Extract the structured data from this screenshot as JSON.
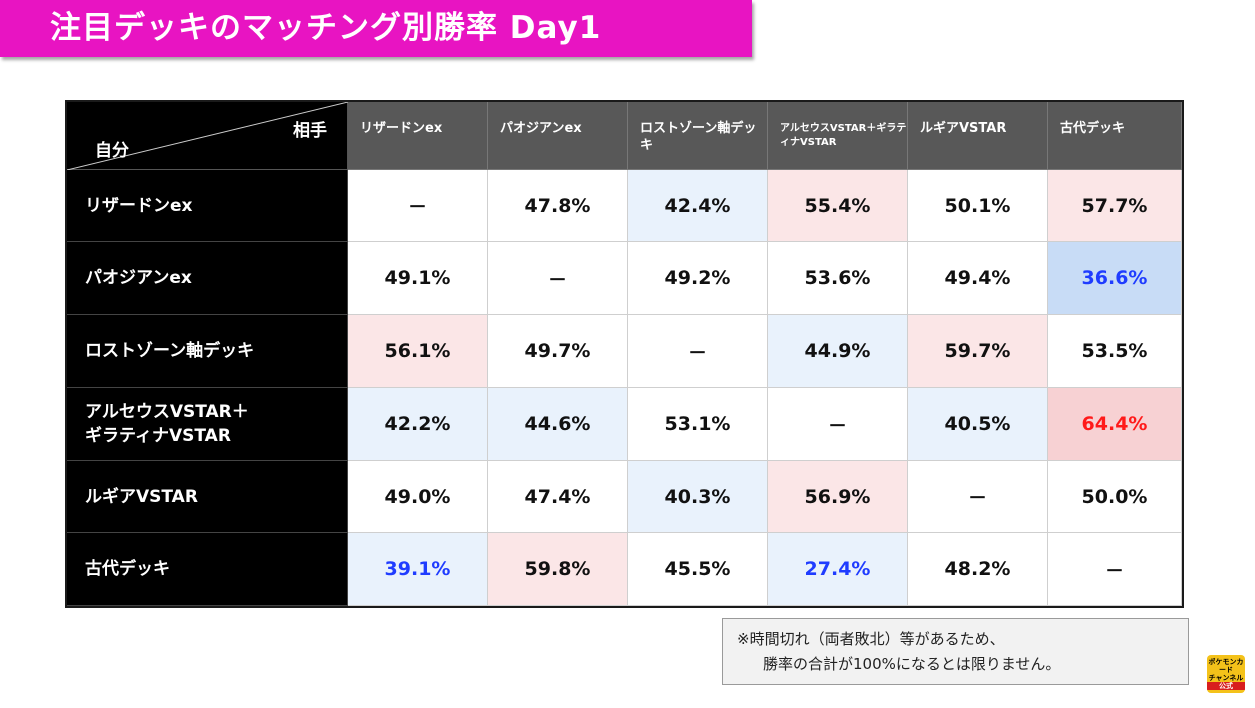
{
  "title": "注目デッキのマッチング別勝率 Day1",
  "corner": {
    "opponent": "相手",
    "self": "自分"
  },
  "columns": [
    "リザードンex",
    "パオジアンex",
    "ロストゾーン軸デッキ",
    "アルセウスVSTAR＋ギラティナVSTAR",
    "ルギアVSTAR",
    "古代デッキ"
  ],
  "rows": [
    {
      "name": "リザードンex",
      "values": [
        "－",
        "47.8%",
        "42.4%",
        "55.4%",
        "50.1%",
        "57.7%"
      ]
    },
    {
      "name": "パオジアンex",
      "values": [
        "49.1%",
        "－",
        "49.2%",
        "53.6%",
        "49.4%",
        "36.6%"
      ]
    },
    {
      "name": "ロストゾーン軸デッキ",
      "values": [
        "56.1%",
        "49.7%",
        "－",
        "44.9%",
        "59.7%",
        "53.5%"
      ]
    },
    {
      "name": "アルセウスVSTAR＋\nギラティナVSTAR",
      "values": [
        "42.2%",
        "44.6%",
        "53.1%",
        "－",
        "40.5%",
        "64.4%"
      ]
    },
    {
      "name": "ルギアVSTAR",
      "values": [
        "49.0%",
        "47.4%",
        "40.3%",
        "56.9%",
        "－",
        "50.0%"
      ]
    },
    {
      "name": "古代デッキ",
      "values": [
        "39.1%",
        "59.8%",
        "45.5%",
        "27.4%",
        "48.2%",
        "－"
      ]
    }
  ],
  "cell_styles": [
    [
      "",
      "",
      "blue",
      "pink",
      "",
      "pink"
    ],
    [
      "",
      "",
      "",
      "",
      "",
      "blue-strong"
    ],
    [
      "pink",
      "",
      "",
      "blue",
      "pink",
      ""
    ],
    [
      "blue",
      "blue",
      "",
      "",
      "blue",
      "pink-strong"
    ],
    [
      "",
      "",
      "blue",
      "pink",
      "",
      ""
    ],
    [
      "blue-text blue",
      "pink",
      "",
      "blue-text blue",
      "",
      ""
    ]
  ],
  "note": {
    "line1": "※時間切れ（両者敗北）等があるため、",
    "line2": "勝率の合計が100%になるとは限りません。"
  },
  "logo": {
    "text_top": "ポケモンカード",
    "text_mid": "チャンネル",
    "band": "公式"
  },
  "colors": {
    "title_bg": "#e814c2",
    "header_bg": "#585858",
    "row_head_bg": "#000000"
  }
}
